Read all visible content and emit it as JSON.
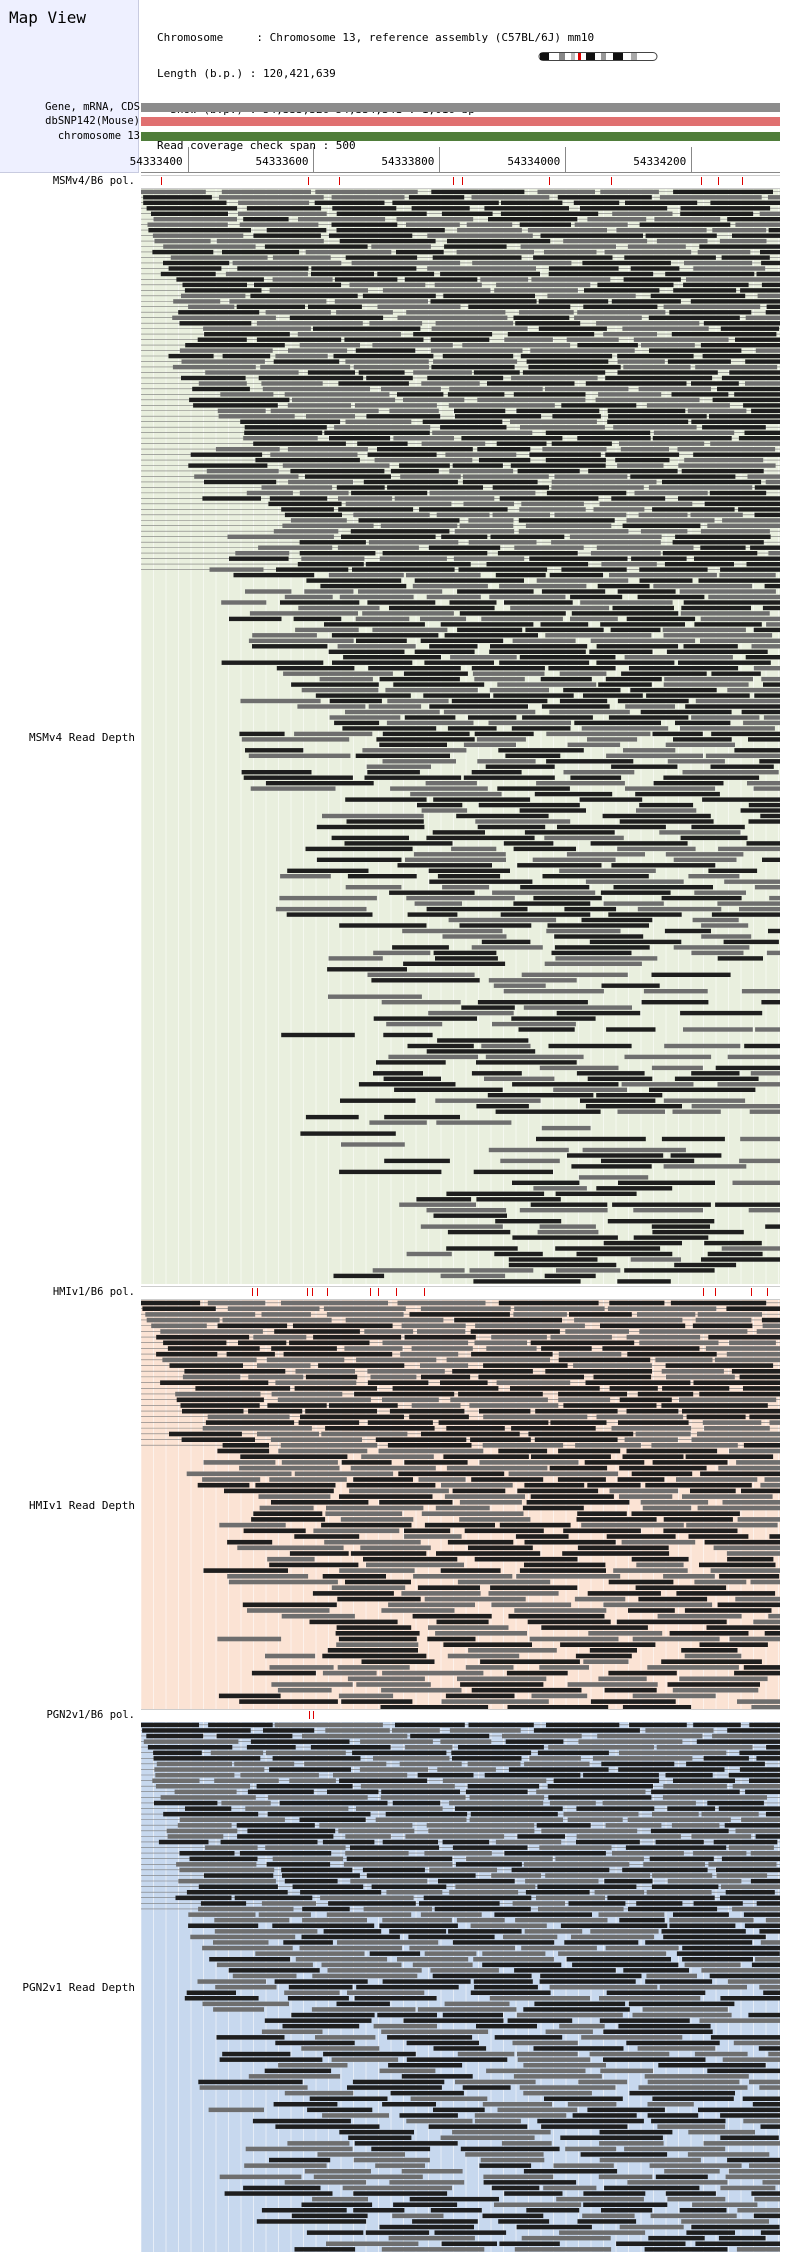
{
  "title": "Map View",
  "info": {
    "chromosome": "Chromosome     : Chromosome 13, reference assembly (C57BL/6J) mm10",
    "length": "Length (b.p.) : 120,421,639",
    "show": "  Show (b.p.) : 54,333,326-54,334,341 : 1,016 bp",
    "span": "Read coverage check span : 500"
  },
  "tracks": {
    "gene": "Gene, mRNA, CDS",
    "snp": "dbSNP142(Mouse)",
    "chrom": "chromosome 13"
  },
  "ruler": {
    "ticks": [
      "54333400",
      "54333600",
      "54333800",
      "54334000",
      "54334200"
    ],
    "tick_positions_bp": [
      54333400,
      54333600,
      54333800,
      54334000,
      54334200
    ],
    "range_bp": [
      54333326,
      54334341
    ]
  },
  "colors": {
    "gene": "#8c8c8c",
    "snp": "#e07070",
    "chrom": "#4f7d3a",
    "msm_bg": "#e9efde",
    "hmi_bg": "#fbe3d4",
    "pgn_bg": "#c7d8ee",
    "read_dark": "#1e1e1e",
    "read_mid": "#6e6e6e",
    "snp_mark": "#d00000"
  },
  "panels": [
    {
      "pol_label": "MSMv4/B6 pol.",
      "depth_label": "MSMv4 Read Depth",
      "bg_key": "msm_bg",
      "snp_bp": [
        54333357,
        54333592,
        54333640,
        54333822,
        54333836,
        54333974,
        54334072,
        54334216,
        54334243,
        54334280
      ]
    },
    {
      "pol_label": "HMIv1/B6 pol.",
      "depth_label": "HMIv1 Read Depth",
      "bg_key": "hmi_bg",
      "snp_bp": [
        54333503,
        54333510,
        54333590,
        54333598,
        54333622,
        54333690,
        54333703,
        54333731,
        54333775,
        54334219,
        54334238,
        54334295,
        54334321
      ]
    },
    {
      "pol_label": "PGN2v1/B6 pol.",
      "depth_label": "PGN2v1 Read Depth",
      "bg_key": "pgn_bg",
      "snp_bp": [
        54333593,
        54333600
      ]
    }
  ]
}
